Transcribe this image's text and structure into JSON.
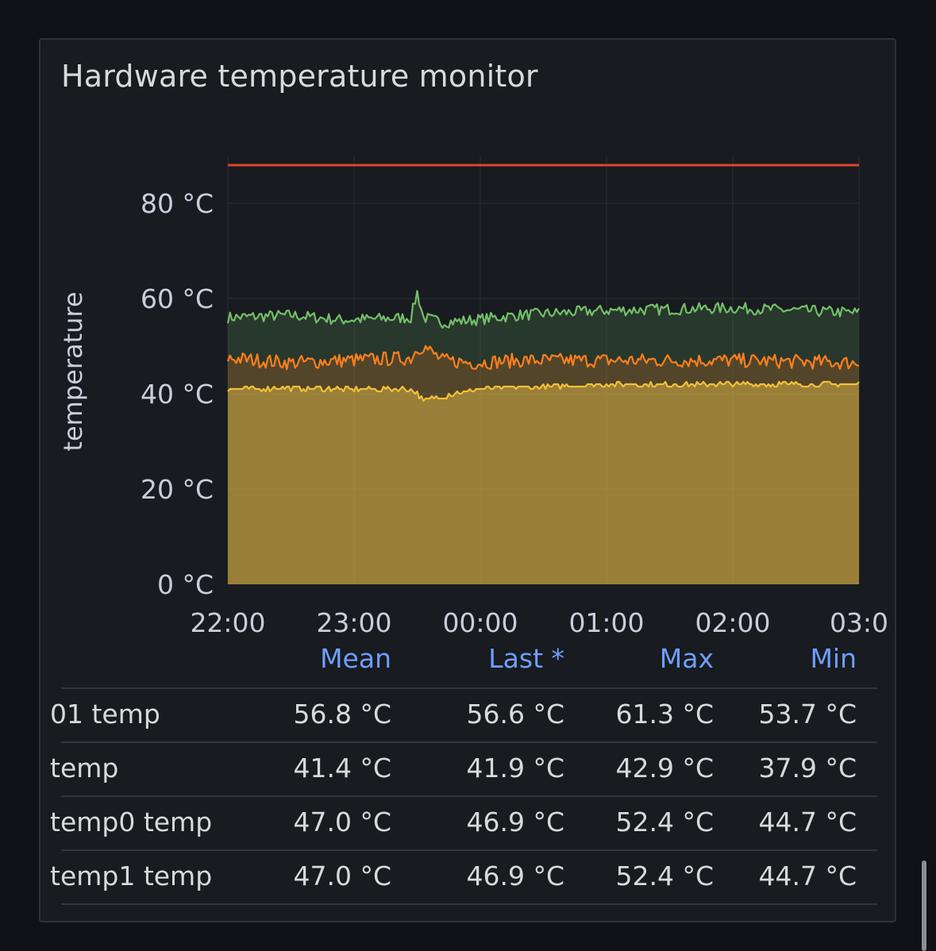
{
  "panel": {
    "title": "Hardware temperature monitor"
  },
  "chart_data": {
    "type": "area",
    "title": "Hardware temperature monitor",
    "ylabel": "temperature",
    "xlabel": "",
    "y_unit": "°C",
    "ylim": [
      0,
      90
    ],
    "yticks": [
      "0 °C",
      "20 °C",
      "40 °C",
      "60 °C",
      "80 °C"
    ],
    "yticks_values": [
      0,
      20,
      40,
      60,
      80
    ],
    "x_ticks": [
      "22:00",
      "23:00",
      "00:00",
      "01:00",
      "02:00",
      "03:0"
    ],
    "grid": true,
    "threshold": {
      "value": 88,
      "color": "#e0432f"
    },
    "x_hours": [
      0,
      0.5,
      0.9,
      1.45,
      1.5,
      1.55,
      1.7,
      1.95,
      2.3,
      3.0,
      4.0,
      5.0
    ],
    "series": [
      {
        "color": "#73bf69",
        "fill": "rgba(115,191,105,0.18)",
        "values": [
          56.0,
          56.5,
          55.5,
          56.0,
          61.3,
          56.0,
          55.0,
          55.5,
          56.5,
          57.5,
          58.0,
          57.0
        ]
      },
      {
        "color": "#ff7f1d",
        "fill": "rgba(255,127,29,0.20)",
        "values": [
          47.5,
          46.5,
          47.0,
          47.5,
          49.5,
          50.0,
          47.0,
          46.5,
          47.0,
          47.0,
          47.0,
          46.5
        ]
      },
      {
        "color": "#f2c037",
        "fill": "rgba(204,169,68,0.58)",
        "values": [
          41.0,
          41.2,
          41.0,
          41.0,
          40.0,
          38.5,
          39.5,
          40.8,
          41.3,
          42.0,
          42.0,
          42.0
        ]
      }
    ]
  },
  "legend": {
    "headers": {
      "mean": "Mean",
      "last": "Last *",
      "max": "Max",
      "min": "Min"
    },
    "rows": [
      {
        "name": "01 temp",
        "mean": "56.8 °C",
        "last": "56.6 °C",
        "max": "61.3 °C",
        "min": "53.7 °C"
      },
      {
        "name": "temp",
        "mean": "41.4 °C",
        "last": "41.9 °C",
        "max": "42.9 °C",
        "min": "37.9 °C"
      },
      {
        "name": "temp0 temp",
        "mean": "47.0 °C",
        "last": "46.9 °C",
        "max": "52.4 °C",
        "min": "44.7 °C"
      },
      {
        "name": "temp1 temp",
        "mean": "47.0 °C",
        "last": "46.9 °C",
        "max": "52.4 °C",
        "min": "44.7 °C"
      }
    ]
  }
}
